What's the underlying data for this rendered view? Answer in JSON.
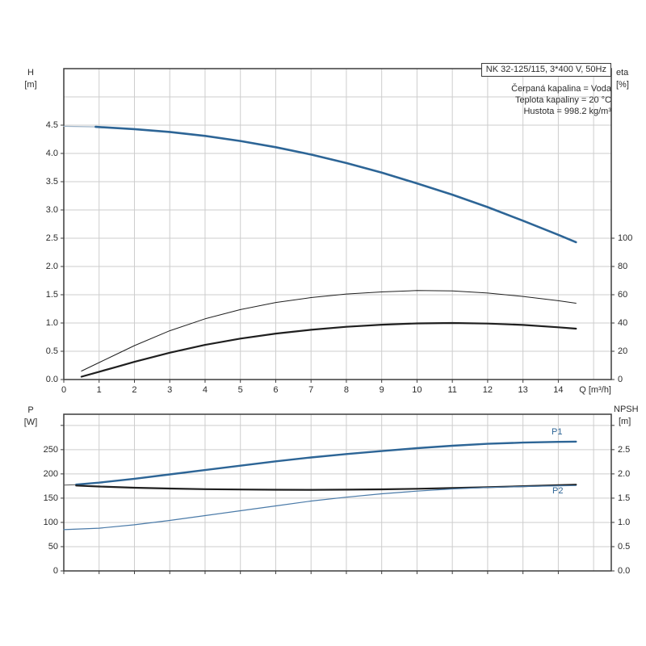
{
  "palette": {
    "blue": "#2d6596",
    "light_blue": "#9fb4c8",
    "steel_blue": "#4a7aa8",
    "black": "#1f1f1f",
    "dark_gray": "#555555",
    "grid": "#cdcdcd",
    "axis": "#3c3c3c",
    "text": "#2b2b2b"
  },
  "title_box": {
    "text": "NK 32-125/115, 3*400 V, 50Hz"
  },
  "info_lines": [
    "Čerpaná kapalina = Voda",
    "Teplota kapaliny = 20 °C",
    "Hustota = 998.2 kg/m³"
  ],
  "top_chart": {
    "y1_title": "H",
    "y1_unit": "[m]",
    "y2_title": "eta",
    "y2_unit": "[%]",
    "x_title": "Q [m³/h]"
  },
  "bottom_chart": {
    "y1_title": "P",
    "y1_unit": "[W]",
    "y2_title": "NPSH",
    "y2_unit": "[m]"
  },
  "curve_labels": {
    "p1": "P1",
    "p2": "P2"
  },
  "chart_data": [
    {
      "id": "qh",
      "type": "line",
      "title": "NK 32-125/115, 3*400 V, 50Hz",
      "xlabel": "Q [m³/h]",
      "ylabel": "H [m]",
      "y2label": "eta [%]",
      "xlim": [
        0,
        15.5
      ],
      "ylim": [
        0,
        5.5
      ],
      "y2lim": [
        0,
        220
      ],
      "grid": true,
      "grid_x": [
        1,
        2,
        3,
        4,
        5,
        6,
        7,
        8,
        9,
        10,
        11,
        12,
        13,
        14,
        15
      ],
      "grid_y1": [
        0.5,
        1.0,
        1.5,
        2.0,
        2.5,
        3.0,
        3.5,
        4.0,
        4.5,
        5.0
      ],
      "x_ticks": [
        [
          0,
          "0"
        ],
        [
          1,
          "1"
        ],
        [
          2,
          "2"
        ],
        [
          3,
          "3"
        ],
        [
          4,
          "4"
        ],
        [
          5,
          "5"
        ],
        [
          6,
          "6"
        ],
        [
          7,
          "7"
        ],
        [
          8,
          "8"
        ],
        [
          9,
          "9"
        ],
        [
          10,
          "10"
        ],
        [
          11,
          "11"
        ],
        [
          12,
          "12"
        ],
        [
          13,
          "13"
        ],
        [
          14,
          "14"
        ]
      ],
      "y1_ticks": [
        [
          0,
          "0.0"
        ],
        [
          0.5,
          "0.5"
        ],
        [
          1,
          "1.0"
        ],
        [
          1.5,
          "1.5"
        ],
        [
          2,
          "2.0"
        ],
        [
          2.5,
          "2.5"
        ],
        [
          3,
          "3.0"
        ],
        [
          3.5,
          "3.5"
        ],
        [
          4,
          "4.0"
        ],
        [
          4.5,
          "4.5"
        ]
      ],
      "y2_ticks": [
        [
          0,
          "0"
        ],
        [
          20,
          "20"
        ],
        [
          40,
          "40"
        ],
        [
          60,
          "60"
        ],
        [
          80,
          "80"
        ],
        [
          100,
          "100"
        ]
      ],
      "series": [
        {
          "name": "H-lead",
          "axis": "y1",
          "color": "light_blue",
          "width": 1.2,
          "points": [
            [
              0,
              4.48
            ],
            [
              0.9,
              4.47
            ]
          ]
        },
        {
          "name": "H",
          "axis": "y1",
          "color": "blue",
          "width": 2.6,
          "points": [
            [
              0.9,
              4.47
            ],
            [
              2,
              4.43
            ],
            [
              3,
              4.38
            ],
            [
              4,
              4.31
            ],
            [
              5,
              4.22
            ],
            [
              6,
              4.11
            ],
            [
              7,
              3.98
            ],
            [
              8,
              3.83
            ],
            [
              9,
              3.66
            ],
            [
              10,
              3.47
            ],
            [
              11,
              3.27
            ],
            [
              12,
              3.05
            ],
            [
              13,
              2.81
            ],
            [
              14,
              2.56
            ],
            [
              14.5,
              2.43
            ]
          ]
        },
        {
          "name": "eta-pump",
          "axis": "y2",
          "color": "black",
          "width": 1,
          "points": [
            [
              0.5,
              6
            ],
            [
              1,
              12
            ],
            [
              1.5,
              18
            ],
            [
              2,
              24
            ],
            [
              3,
              34.5
            ],
            [
              4,
              43
            ],
            [
              5,
              49.5
            ],
            [
              6,
              54.5
            ],
            [
              7,
              58
            ],
            [
              8,
              60.5
            ],
            [
              9,
              62
            ],
            [
              10,
              63
            ],
            [
              11,
              62.7
            ],
            [
              12,
              61.2
            ],
            [
              13,
              58.8
            ],
            [
              14,
              55.8
            ],
            [
              14.5,
              54
            ]
          ]
        },
        {
          "name": "eta-total",
          "axis": "y2",
          "color": "black",
          "width": 2.2,
          "points": [
            [
              0.5,
              2
            ],
            [
              1,
              5.5
            ],
            [
              1.5,
              9
            ],
            [
              2,
              12.5
            ],
            [
              3,
              19
            ],
            [
              4,
              24.5
            ],
            [
              5,
              29
            ],
            [
              6,
              32.5
            ],
            [
              7,
              35.2
            ],
            [
              8,
              37.3
            ],
            [
              9,
              38.8
            ],
            [
              10,
              39.7
            ],
            [
              11,
              40
            ],
            [
              12,
              39.6
            ],
            [
              13,
              38.6
            ],
            [
              14,
              37
            ],
            [
              14.5,
              36
            ]
          ]
        }
      ]
    },
    {
      "id": "power-npsh",
      "type": "line",
      "title": "",
      "xlabel": "",
      "ylabel": "P [W]",
      "y2label": "NPSH [m]",
      "xlim": [
        0,
        15.5
      ],
      "ylim": [
        0,
        323
      ],
      "y2lim": [
        0,
        3.23
      ],
      "grid": true,
      "grid_x": [
        1,
        2,
        3,
        4,
        5,
        6,
        7,
        8,
        9,
        10,
        11,
        12,
        13,
        14,
        15
      ],
      "grid_y1": [
        50,
        100,
        150,
        200,
        250,
        300
      ],
      "x_ticks": [
        [
          0,
          ""
        ],
        [
          1,
          ""
        ],
        [
          2,
          ""
        ],
        [
          3,
          ""
        ],
        [
          4,
          ""
        ],
        [
          5,
          ""
        ],
        [
          6,
          ""
        ],
        [
          7,
          ""
        ],
        [
          8,
          ""
        ],
        [
          9,
          ""
        ],
        [
          10,
          ""
        ],
        [
          11,
          ""
        ],
        [
          12,
          ""
        ],
        [
          13,
          ""
        ],
        [
          14,
          ""
        ]
      ],
      "y1_ticks": [
        [
          0,
          "0"
        ],
        [
          50,
          "50"
        ],
        [
          100,
          "100"
        ],
        [
          150,
          "150"
        ],
        [
          200,
          "200"
        ],
        [
          250,
          "250"
        ],
        [
          300,
          ""
        ]
      ],
      "y2_ticks": [
        [
          0,
          "0.0"
        ],
        [
          0.5,
          "0.5"
        ],
        [
          1,
          "1.0"
        ],
        [
          1.5,
          "1.5"
        ],
        [
          2,
          "2.0"
        ],
        [
          2.5,
          "2.5"
        ],
        [
          3,
          ""
        ]
      ],
      "series": [
        {
          "name": "P1-lead",
          "axis": "y1",
          "color": "dark_gray",
          "width": 1,
          "points": [
            [
              0,
              177
            ],
            [
              0.35,
              177.8
            ]
          ]
        },
        {
          "name": "P1",
          "axis": "y1",
          "color": "blue",
          "width": 2.4,
          "points": [
            [
              0.35,
              178
            ],
            [
              1,
              182
            ],
            [
              2,
              190
            ],
            [
              3,
              199
            ],
            [
              4,
              208
            ],
            [
              5,
              217
            ],
            [
              6,
              226
            ],
            [
              7,
              234
            ],
            [
              8,
              241
            ],
            [
              9,
              247
            ],
            [
              10,
              253
            ],
            [
              11,
              258
            ],
            [
              12,
              262
            ],
            [
              13,
              264.5
            ],
            [
              14,
              266
            ],
            [
              14.5,
              266.5
            ]
          ]
        },
        {
          "name": "P2",
          "axis": "y1",
          "color": "black",
          "width": 2.2,
          "points": [
            [
              0.35,
              176
            ],
            [
              1,
              174
            ],
            [
              2,
              171.5
            ],
            [
              3,
              169.8
            ],
            [
              4,
              168.5
            ],
            [
              5,
              167.8
            ],
            [
              6,
              167.3
            ],
            [
              7,
              167.2
            ],
            [
              8,
              167.5
            ],
            [
              9,
              168.2
            ],
            [
              10,
              169.3
            ],
            [
              11,
              170.8
            ],
            [
              12,
              172.6
            ],
            [
              13,
              174.6
            ],
            [
              14,
              176.8
            ],
            [
              14.5,
              177.8
            ]
          ]
        },
        {
          "name": "NPSH",
          "axis": "y2",
          "color": "steel_blue",
          "width": 1.2,
          "points": [
            [
              0,
              0.85
            ],
            [
              1,
              0.88
            ],
            [
              2,
              0.95
            ],
            [
              3,
              1.04
            ],
            [
              4,
              1.14
            ],
            [
              5,
              1.24
            ],
            [
              6,
              1.34
            ],
            [
              7,
              1.44
            ],
            [
              8,
              1.52
            ],
            [
              9,
              1.59
            ],
            [
              10,
              1.645
            ],
            [
              11,
              1.69
            ],
            [
              12,
              1.72
            ],
            [
              13,
              1.74
            ],
            [
              14,
              1.755
            ],
            [
              14.5,
              1.76
            ]
          ]
        }
      ]
    }
  ]
}
